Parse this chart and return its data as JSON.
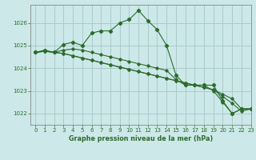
{
  "title": "Graphe pression niveau de la mer (hPa)",
  "background_color": "#cce8e8",
  "grid_color": "#aacccc",
  "line_color": "#2d6b2d",
  "xlim": [
    -0.5,
    23
  ],
  "ylim": [
    1021.5,
    1026.8
  ],
  "yticks": [
    1022,
    1023,
    1024,
    1025,
    1026
  ],
  "xticks": [
    0,
    1,
    2,
    3,
    4,
    5,
    6,
    7,
    8,
    9,
    10,
    11,
    12,
    13,
    14,
    15,
    16,
    17,
    18,
    19,
    20,
    21,
    22,
    23
  ],
  "series": [
    [
      1024.7,
      1024.8,
      1024.7,
      1025.05,
      1025.15,
      1025.0,
      1025.55,
      1025.65,
      1025.65,
      1026.0,
      1026.15,
      1026.55,
      1026.1,
      1025.7,
      1025.0,
      1023.7,
      1023.25,
      1023.25,
      1023.25,
      1023.25,
      1022.55,
      1022.0,
      1022.2,
      1022.2
    ],
    [
      1024.7,
      1024.75,
      1024.7,
      1024.65,
      1024.55,
      1024.45,
      1024.35,
      1024.25,
      1024.15,
      1024.05,
      1023.95,
      1023.85,
      1023.75,
      1023.65,
      1023.55,
      1023.45,
      1023.35,
      1023.25,
      1023.15,
      1023.05,
      1022.85,
      1022.65,
      1022.2,
      1022.2
    ],
    [
      1024.7,
      1024.75,
      1024.7,
      1024.65,
      1024.55,
      1024.45,
      1024.35,
      1024.25,
      1024.15,
      1024.05,
      1023.95,
      1023.85,
      1023.75,
      1023.65,
      1023.55,
      1023.45,
      1023.35,
      1023.25,
      1023.15,
      1023.05,
      1022.75,
      1022.45,
      1022.1,
      1022.2
    ],
    [
      1024.7,
      1024.75,
      1024.7,
      1024.8,
      1024.85,
      1024.8,
      1024.7,
      1024.6,
      1024.5,
      1024.4,
      1024.3,
      1024.2,
      1024.1,
      1024.0,
      1023.9,
      1023.5,
      1023.25,
      1023.25,
      1023.25,
      1023.0,
      1022.5,
      1022.0,
      1022.2,
      1022.2
    ]
  ]
}
